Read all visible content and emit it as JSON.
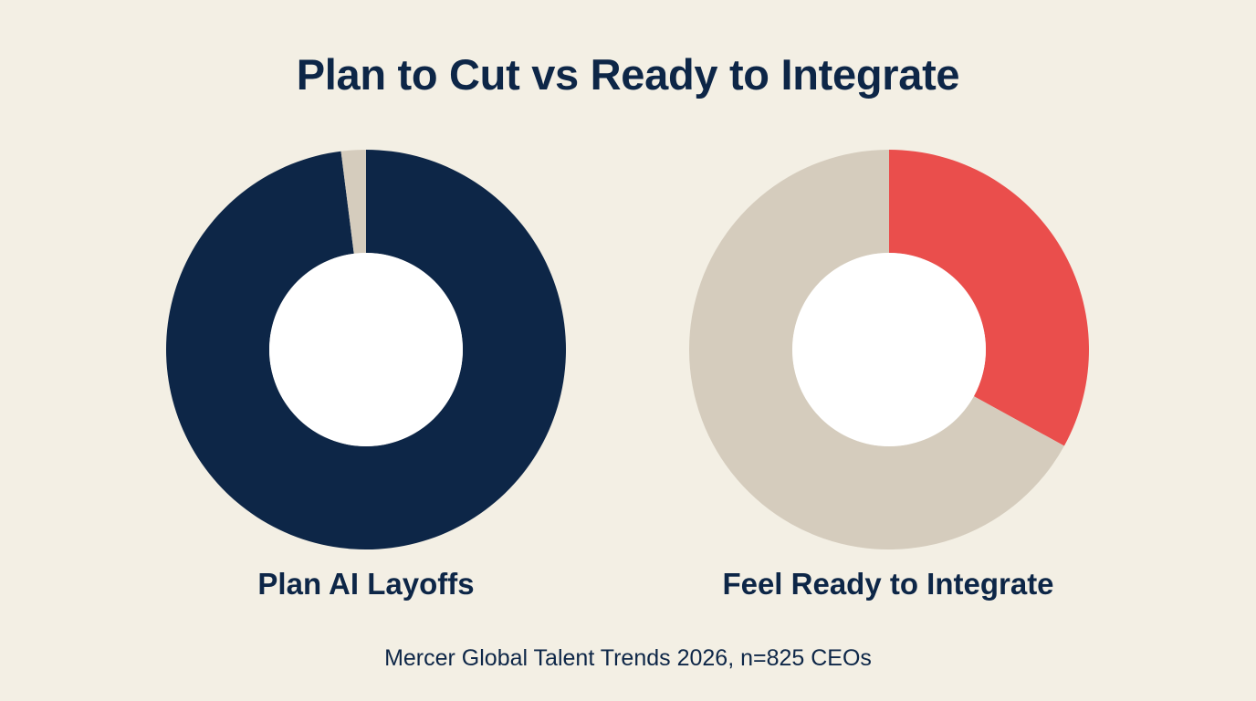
{
  "chart_data": {
    "type": "pie",
    "title": "Plan to Cut vs Ready to Integrate",
    "source": "Mercer Global Talent Trends 2026, n=825 CEOs",
    "charts": [
      {
        "label": "Plan AI Layoffs",
        "value": 98,
        "remainder": 2,
        "color": "#0d2647",
        "remainder_color": "#d5ccbd"
      },
      {
        "label": "Feel Ready to Integrate",
        "value": 33,
        "remainder": 67,
        "color": "#ea4e4c",
        "remainder_color": "#d5ccbd"
      }
    ]
  }
}
